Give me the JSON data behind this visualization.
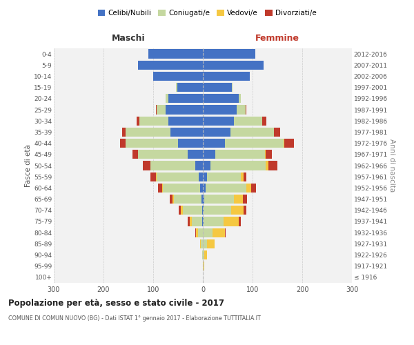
{
  "age_groups": [
    "100+",
    "95-99",
    "90-94",
    "85-89",
    "80-84",
    "75-79",
    "70-74",
    "65-69",
    "60-64",
    "55-59",
    "50-54",
    "45-49",
    "40-44",
    "35-39",
    "30-34",
    "25-29",
    "20-24",
    "15-19",
    "10-14",
    "5-9",
    "0-4"
  ],
  "birth_years": [
    "≤ 1916",
    "1917-1921",
    "1922-1926",
    "1927-1931",
    "1932-1936",
    "1937-1941",
    "1942-1946",
    "1947-1951",
    "1952-1956",
    "1957-1961",
    "1962-1966",
    "1967-1971",
    "1972-1976",
    "1977-1981",
    "1982-1986",
    "1987-1991",
    "1992-1996",
    "1997-2001",
    "2002-2006",
    "2007-2011",
    "2012-2016"
  ],
  "male": {
    "celibi": [
      0,
      0,
      0,
      0,
      0,
      2,
      2,
      3,
      5,
      8,
      15,
      30,
      50,
      65,
      70,
      75,
      70,
      52,
      100,
      130,
      110
    ],
    "coniugati": [
      0,
      0,
      1,
      4,
      10,
      20,
      38,
      55,
      75,
      85,
      90,
      100,
      105,
      90,
      58,
      18,
      5,
      2,
      0,
      0,
      0
    ],
    "vedovi": [
      0,
      0,
      1,
      2,
      4,
      5,
      4,
      3,
      2,
      1,
      1,
      0,
      0,
      0,
      0,
      0,
      0,
      0,
      0,
      0,
      0
    ],
    "divorziati": [
      0,
      0,
      0,
      0,
      1,
      3,
      4,
      5,
      8,
      12,
      15,
      12,
      12,
      8,
      5,
      2,
      0,
      0,
      0,
      0,
      0
    ]
  },
  "female": {
    "nubili": [
      0,
      0,
      0,
      0,
      0,
      2,
      2,
      3,
      5,
      8,
      15,
      25,
      45,
      55,
      62,
      68,
      72,
      58,
      95,
      122,
      105
    ],
    "coniugate": [
      0,
      1,
      3,
      8,
      20,
      40,
      55,
      60,
      82,
      68,
      112,
      100,
      118,
      88,
      58,
      18,
      5,
      2,
      0,
      0,
      0
    ],
    "vedove": [
      0,
      2,
      6,
      15,
      25,
      30,
      25,
      18,
      10,
      6,
      5,
      2,
      1,
      0,
      0,
      0,
      0,
      0,
      0,
      0,
      0
    ],
    "divorziate": [
      0,
      0,
      0,
      0,
      1,
      4,
      5,
      8,
      10,
      5,
      18,
      12,
      20,
      12,
      8,
      2,
      0,
      0,
      0,
      0,
      0
    ]
  },
  "colors": {
    "celibi": "#4472C4",
    "coniugati": "#C5D8A0",
    "vedovi": "#F5C842",
    "divorziati": "#C0392B"
  },
  "xlim": 300,
  "title": "Popolazione per età, sesso e stato civile - 2017",
  "subtitle": "COMUNE DI COMUN NUOVO (BG) - Dati ISTAT 1° gennaio 2017 - Elaborazione TUTTITALIA.IT",
  "ylabel_left": "Fasce di età",
  "ylabel_right": "Anni di nascita",
  "xlabel_left": "Maschi",
  "xlabel_right": "Femmine",
  "bg_color": "#FFFFFF",
  "grid_color": "#CCCCCC"
}
